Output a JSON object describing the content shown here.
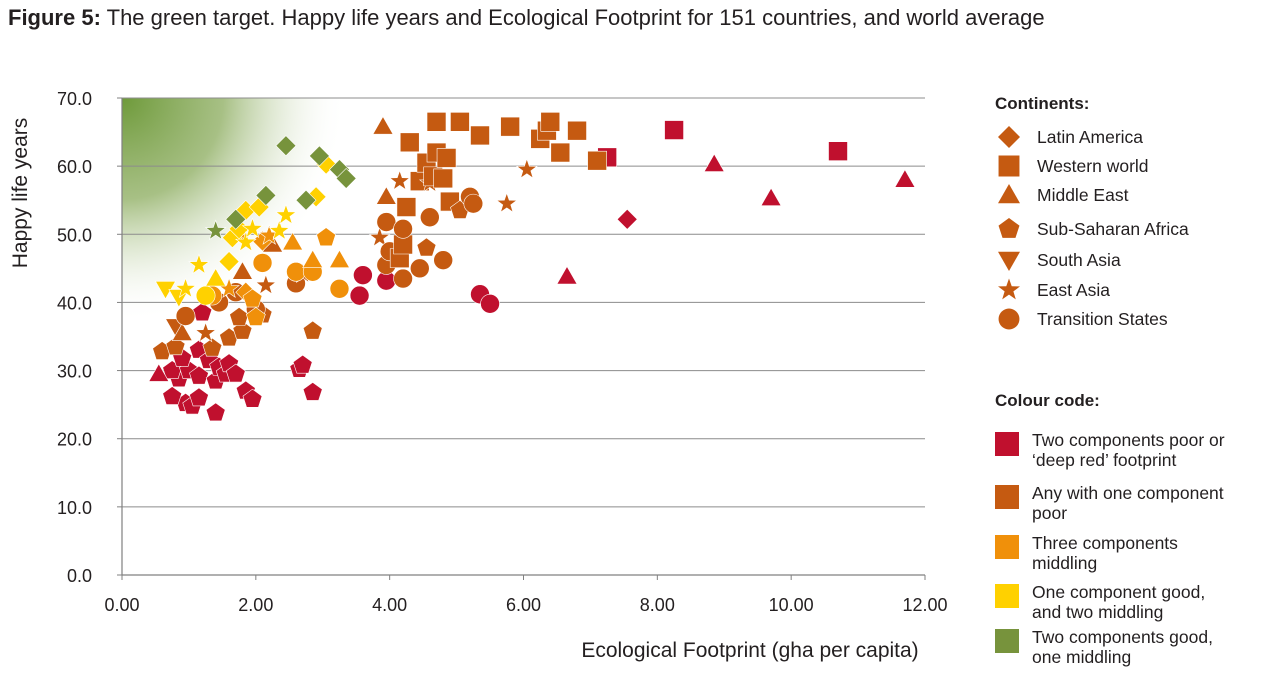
{
  "figure": {
    "label": "Figure 5:",
    "caption": "The green target. Happy life years and Ecological Footprint for 151 countries, and world average"
  },
  "legend": {
    "continents_heading": "Continents:",
    "continents": [
      {
        "name": "Latin America",
        "shape": "diamond"
      },
      {
        "name": "Western world",
        "shape": "square"
      },
      {
        "name": "Middle East",
        "shape": "triangle"
      },
      {
        "name": "Sub-Saharan Africa",
        "shape": "pentagon"
      },
      {
        "name": "South Asia",
        "shape": "triangle-down"
      },
      {
        "name": "East Asia",
        "shape": "star"
      },
      {
        "name": "Transition States",
        "shape": "circle"
      }
    ],
    "colour_heading": "Colour code:",
    "colour_codes": [
      {
        "label": "Two components poor or\n‘deep red’ footprint",
        "color": "#c0102e"
      },
      {
        "label": "Any with one component\npoor",
        "color": "#c55a11"
      },
      {
        "label": "Three components\nmiddling",
        "color": "#f0900a"
      },
      {
        "label": "One component good,\nand two middling",
        "color": "#ffd100"
      },
      {
        "label": "Two components good,\none middling",
        "color": "#77933c"
      }
    ]
  },
  "colors": {
    "deep_red": "#c0102e",
    "one_poor": "#c55a11",
    "middling": "#f0900a",
    "one_good": "#ffd100",
    "two_good": "#77933c",
    "target_green": "#6e9a3a"
  },
  "chart_data": {
    "type": "scatter",
    "xlabel": "Ecological Footprint (gha per capita)",
    "ylabel": "Happy life years",
    "xlim": [
      0,
      12
    ],
    "ylim": [
      0,
      70
    ],
    "xticks": [
      "0.00",
      "2.00",
      "4.00",
      "6.00",
      "8.00",
      "10.00",
      "12.00"
    ],
    "yticks": [
      "0.0",
      "10.0",
      "20.0",
      "30.0",
      "40.0",
      "50.0",
      "60.0",
      "70.0"
    ],
    "grid": "horizontal",
    "target_region": "green gradient at low footprint / high happy life years (top-left)",
    "points": [
      {
        "x": 0.95,
        "y": 25.2,
        "s": "pentagon",
        "c": "deep_red"
      },
      {
        "x": 0.75,
        "y": 26.2,
        "s": "pentagon",
        "c": "deep_red"
      },
      {
        "x": 1.05,
        "y": 24.8,
        "s": "pentagon",
        "c": "deep_red"
      },
      {
        "x": 1.15,
        "y": 26.0,
        "s": "pentagon",
        "c": "deep_red"
      },
      {
        "x": 0.85,
        "y": 28.8,
        "s": "pentagon",
        "c": "deep_red"
      },
      {
        "x": 0.75,
        "y": 30.0,
        "s": "pentagon",
        "c": "deep_red"
      },
      {
        "x": 1.0,
        "y": 30.0,
        "s": "pentagon",
        "c": "deep_red"
      },
      {
        "x": 1.15,
        "y": 29.2,
        "s": "pentagon",
        "c": "deep_red"
      },
      {
        "x": 0.9,
        "y": 31.8,
        "s": "pentagon",
        "c": "deep_red"
      },
      {
        "x": 1.15,
        "y": 33.0,
        "s": "pentagon",
        "c": "deep_red"
      },
      {
        "x": 1.3,
        "y": 31.5,
        "s": "pentagon",
        "c": "deep_red"
      },
      {
        "x": 1.4,
        "y": 28.5,
        "s": "pentagon",
        "c": "deep_red"
      },
      {
        "x": 1.45,
        "y": 30.5,
        "s": "pentagon",
        "c": "deep_red"
      },
      {
        "x": 1.55,
        "y": 29.5,
        "s": "pentagon",
        "c": "deep_red"
      },
      {
        "x": 1.6,
        "y": 31.0,
        "s": "pentagon",
        "c": "deep_red"
      },
      {
        "x": 1.7,
        "y": 29.5,
        "s": "pentagon",
        "c": "deep_red"
      },
      {
        "x": 1.4,
        "y": 23.8,
        "s": "pentagon",
        "c": "deep_red"
      },
      {
        "x": 1.85,
        "y": 27.0,
        "s": "pentagon",
        "c": "deep_red"
      },
      {
        "x": 1.95,
        "y": 25.8,
        "s": "pentagon",
        "c": "deep_red"
      },
      {
        "x": 1.2,
        "y": 38.5,
        "s": "pentagon",
        "c": "deep_red"
      },
      {
        "x": 2.65,
        "y": 30.2,
        "s": "pentagon",
        "c": "deep_red"
      },
      {
        "x": 2.7,
        "y": 30.8,
        "s": "pentagon",
        "c": "deep_red"
      },
      {
        "x": 2.85,
        "y": 26.8,
        "s": "pentagon",
        "c": "deep_red"
      },
      {
        "x": 0.55,
        "y": 29.5,
        "s": "triangle",
        "c": "deep_red"
      },
      {
        "x": 3.6,
        "y": 44.0,
        "s": "circle",
        "c": "deep_red"
      },
      {
        "x": 3.55,
        "y": 41.0,
        "s": "circle",
        "c": "deep_red"
      },
      {
        "x": 3.95,
        "y": 43.2,
        "s": "circle",
        "c": "deep_red"
      },
      {
        "x": 5.35,
        "y": 41.2,
        "s": "circle",
        "c": "deep_red"
      },
      {
        "x": 5.5,
        "y": 39.8,
        "s": "circle",
        "c": "deep_red"
      },
      {
        "x": 6.65,
        "y": 43.8,
        "s": "triangle",
        "c": "deep_red"
      },
      {
        "x": 7.55,
        "y": 52.2,
        "s": "diamond",
        "c": "deep_red"
      },
      {
        "x": 7.25,
        "y": 61.3,
        "s": "square",
        "c": "deep_red"
      },
      {
        "x": 8.25,
        "y": 65.3,
        "s": "square",
        "c": "deep_red"
      },
      {
        "x": 8.85,
        "y": 60.3,
        "s": "triangle",
        "c": "deep_red"
      },
      {
        "x": 9.7,
        "y": 55.3,
        "s": "triangle",
        "c": "deep_red"
      },
      {
        "x": 10.7,
        "y": 62.2,
        "s": "square",
        "c": "deep_red"
      },
      {
        "x": 11.7,
        "y": 58.0,
        "s": "triangle",
        "c": "deep_red"
      },
      {
        "x": 0.6,
        "y": 32.8,
        "s": "pentagon",
        "c": "one_poor"
      },
      {
        "x": 0.8,
        "y": 33.5,
        "s": "pentagon",
        "c": "one_poor"
      },
      {
        "x": 1.35,
        "y": 33.3,
        "s": "pentagon",
        "c": "one_poor"
      },
      {
        "x": 1.6,
        "y": 34.8,
        "s": "pentagon",
        "c": "one_poor"
      },
      {
        "x": 1.8,
        "y": 35.8,
        "s": "pentagon",
        "c": "one_poor"
      },
      {
        "x": 1.75,
        "y": 37.8,
        "s": "pentagon",
        "c": "one_poor"
      },
      {
        "x": 2.1,
        "y": 38.2,
        "s": "pentagon",
        "c": "one_poor"
      },
      {
        "x": 2.85,
        "y": 35.8,
        "s": "pentagon",
        "c": "one_poor"
      },
      {
        "x": 0.8,
        "y": 36.5,
        "s": "triangle-down",
        "c": "one_poor"
      },
      {
        "x": 0.9,
        "y": 35.5,
        "s": "triangle",
        "c": "one_poor"
      },
      {
        "x": 1.25,
        "y": 35.5,
        "s": "star",
        "c": "one_poor"
      },
      {
        "x": 0.95,
        "y": 38.0,
        "s": "circle",
        "c": "one_poor"
      },
      {
        "x": 1.45,
        "y": 40.0,
        "s": "circle",
        "c": "one_poor"
      },
      {
        "x": 1.7,
        "y": 41.5,
        "s": "circle",
        "c": "one_poor"
      },
      {
        "x": 1.8,
        "y": 44.5,
        "s": "triangle",
        "c": "one_poor"
      },
      {
        "x": 2.0,
        "y": 39.0,
        "s": "circle",
        "c": "one_poor"
      },
      {
        "x": 2.15,
        "y": 42.5,
        "s": "star",
        "c": "one_poor"
      },
      {
        "x": 2.25,
        "y": 48.5,
        "s": "triangle",
        "c": "one_poor"
      },
      {
        "x": 2.6,
        "y": 42.8,
        "s": "circle",
        "c": "one_poor"
      },
      {
        "x": 2.7,
        "y": 44.2,
        "s": "star",
        "c": "one_poor"
      },
      {
        "x": 3.85,
        "y": 49.5,
        "s": "star",
        "c": "one_poor"
      },
      {
        "x": 3.95,
        "y": 55.5,
        "s": "triangle",
        "c": "one_poor"
      },
      {
        "x": 3.9,
        "y": 65.8,
        "s": "triangle",
        "c": "one_poor"
      },
      {
        "x": 3.95,
        "y": 51.8,
        "s": "circle",
        "c": "one_poor"
      },
      {
        "x": 3.95,
        "y": 45.5,
        "s": "circle",
        "c": "one_poor"
      },
      {
        "x": 4.0,
        "y": 47.5,
        "s": "circle",
        "c": "one_poor"
      },
      {
        "x": 4.15,
        "y": 46.5,
        "s": "square",
        "c": "one_poor"
      },
      {
        "x": 4.2,
        "y": 48.5,
        "s": "square",
        "c": "one_poor"
      },
      {
        "x": 4.2,
        "y": 50.8,
        "s": "circle",
        "c": "one_poor"
      },
      {
        "x": 4.15,
        "y": 57.8,
        "s": "star",
        "c": "one_poor"
      },
      {
        "x": 4.2,
        "y": 43.5,
        "s": "circle",
        "c": "one_poor"
      },
      {
        "x": 4.25,
        "y": 54.0,
        "s": "square",
        "c": "one_poor"
      },
      {
        "x": 4.3,
        "y": 63.5,
        "s": "square",
        "c": "one_poor"
      },
      {
        "x": 4.45,
        "y": 57.8,
        "s": "square",
        "c": "one_poor"
      },
      {
        "x": 4.45,
        "y": 45.0,
        "s": "circle",
        "c": "one_poor"
      },
      {
        "x": 4.55,
        "y": 60.5,
        "s": "square",
        "c": "one_poor"
      },
      {
        "x": 4.55,
        "y": 48.0,
        "s": "pentagon",
        "c": "one_poor"
      },
      {
        "x": 4.6,
        "y": 57.5,
        "s": "star",
        "c": "one_poor"
      },
      {
        "x": 4.6,
        "y": 52.5,
        "s": "circle",
        "c": "one_poor"
      },
      {
        "x": 4.65,
        "y": 58.5,
        "s": "square",
        "c": "one_poor"
      },
      {
        "x": 4.7,
        "y": 62.0,
        "s": "square",
        "c": "one_poor"
      },
      {
        "x": 4.7,
        "y": 66.5,
        "s": "square",
        "c": "one_poor"
      },
      {
        "x": 4.8,
        "y": 46.2,
        "s": "circle",
        "c": "one_poor"
      },
      {
        "x": 4.8,
        "y": 58.2,
        "s": "square",
        "c": "one_poor"
      },
      {
        "x": 4.85,
        "y": 61.2,
        "s": "square",
        "c": "one_poor"
      },
      {
        "x": 4.9,
        "y": 54.8,
        "s": "square",
        "c": "one_poor"
      },
      {
        "x": 5.05,
        "y": 53.5,
        "s": "pentagon",
        "c": "one_poor"
      },
      {
        "x": 5.05,
        "y": 66.5,
        "s": "square",
        "c": "one_poor"
      },
      {
        "x": 5.2,
        "y": 55.5,
        "s": "circle",
        "c": "one_poor"
      },
      {
        "x": 5.25,
        "y": 54.5,
        "s": "circle",
        "c": "one_poor"
      },
      {
        "x": 5.35,
        "y": 64.5,
        "s": "square",
        "c": "one_poor"
      },
      {
        "x": 5.75,
        "y": 54.5,
        "s": "star",
        "c": "one_poor"
      },
      {
        "x": 5.8,
        "y": 65.8,
        "s": "square",
        "c": "one_poor"
      },
      {
        "x": 6.05,
        "y": 59.5,
        "s": "star",
        "c": "one_poor"
      },
      {
        "x": 6.25,
        "y": 64.0,
        "s": "square",
        "c": "one_poor"
      },
      {
        "x": 6.35,
        "y": 65.2,
        "s": "square",
        "c": "one_poor"
      },
      {
        "x": 6.4,
        "y": 66.5,
        "s": "square",
        "c": "one_poor"
      },
      {
        "x": 6.55,
        "y": 62.0,
        "s": "square",
        "c": "one_poor"
      },
      {
        "x": 6.8,
        "y": 65.2,
        "s": "square",
        "c": "one_poor"
      },
      {
        "x": 7.1,
        "y": 60.8,
        "s": "square",
        "c": "one_poor"
      },
      {
        "x": 1.35,
        "y": 41.0,
        "s": "circle",
        "c": "middling"
      },
      {
        "x": 1.6,
        "y": 42.0,
        "s": "star",
        "c": "middling"
      },
      {
        "x": 1.75,
        "y": 49.5,
        "s": "star",
        "c": "middling"
      },
      {
        "x": 1.85,
        "y": 41.5,
        "s": "diamond",
        "c": "middling"
      },
      {
        "x": 1.95,
        "y": 40.5,
        "s": "pentagon",
        "c": "middling"
      },
      {
        "x": 2.0,
        "y": 37.8,
        "s": "pentagon",
        "c": "middling"
      },
      {
        "x": 2.1,
        "y": 45.8,
        "s": "circle",
        "c": "middling"
      },
      {
        "x": 2.1,
        "y": 49.0,
        "s": "diamond",
        "c": "middling"
      },
      {
        "x": 2.2,
        "y": 49.8,
        "s": "star",
        "c": "middling"
      },
      {
        "x": 2.55,
        "y": 48.8,
        "s": "triangle",
        "c": "middling"
      },
      {
        "x": 2.6,
        "y": 44.5,
        "s": "circle",
        "c": "middling"
      },
      {
        "x": 2.85,
        "y": 44.5,
        "s": "circle",
        "c": "middling"
      },
      {
        "x": 2.85,
        "y": 46.2,
        "s": "triangle",
        "c": "middling"
      },
      {
        "x": 3.05,
        "y": 49.5,
        "s": "pentagon",
        "c": "middling"
      },
      {
        "x": 3.25,
        "y": 46.2,
        "s": "triangle",
        "c": "middling"
      },
      {
        "x": 3.25,
        "y": 42.0,
        "s": "circle",
        "c": "middling"
      },
      {
        "x": 0.65,
        "y": 42.0,
        "s": "triangle-down",
        "c": "one_good"
      },
      {
        "x": 0.85,
        "y": 40.8,
        "s": "triangle-down",
        "c": "one_good"
      },
      {
        "x": 0.95,
        "y": 42.0,
        "s": "star",
        "c": "one_good"
      },
      {
        "x": 1.15,
        "y": 45.5,
        "s": "star",
        "c": "one_good"
      },
      {
        "x": 1.25,
        "y": 41.0,
        "s": "circle",
        "c": "one_good"
      },
      {
        "x": 1.4,
        "y": 43.5,
        "s": "triangle",
        "c": "one_good"
      },
      {
        "x": 1.6,
        "y": 46.0,
        "s": "diamond",
        "c": "one_good"
      },
      {
        "x": 1.65,
        "y": 49.5,
        "s": "diamond",
        "c": "one_good"
      },
      {
        "x": 1.75,
        "y": 50.8,
        "s": "diamond",
        "c": "one_good"
      },
      {
        "x": 1.85,
        "y": 53.5,
        "s": "diamond",
        "c": "one_good"
      },
      {
        "x": 1.85,
        "y": 48.8,
        "s": "star",
        "c": "one_good"
      },
      {
        "x": 1.95,
        "y": 50.8,
        "s": "star",
        "c": "one_good"
      },
      {
        "x": 2.05,
        "y": 54.0,
        "s": "diamond",
        "c": "one_good"
      },
      {
        "x": 2.35,
        "y": 50.5,
        "s": "star",
        "c": "one_good"
      },
      {
        "x": 2.45,
        "y": 52.8,
        "s": "star",
        "c": "one_good"
      },
      {
        "x": 2.9,
        "y": 55.5,
        "s": "diamond",
        "c": "one_good"
      },
      {
        "x": 3.05,
        "y": 60.3,
        "s": "diamond",
        "c": "one_good"
      },
      {
        "x": 1.4,
        "y": 50.5,
        "s": "star",
        "c": "two_good"
      },
      {
        "x": 1.7,
        "y": 52.2,
        "s": "diamond",
        "c": "two_good"
      },
      {
        "x": 2.15,
        "y": 55.7,
        "s": "diamond",
        "c": "two_good"
      },
      {
        "x": 2.45,
        "y": 63.0,
        "s": "diamond",
        "c": "two_good"
      },
      {
        "x": 2.75,
        "y": 55.0,
        "s": "diamond",
        "c": "two_good"
      },
      {
        "x": 2.95,
        "y": 61.5,
        "s": "diamond",
        "c": "two_good"
      },
      {
        "x": 3.25,
        "y": 59.5,
        "s": "diamond",
        "c": "two_good"
      },
      {
        "x": 3.35,
        "y": 58.2,
        "s": "diamond",
        "c": "two_good"
      }
    ]
  }
}
